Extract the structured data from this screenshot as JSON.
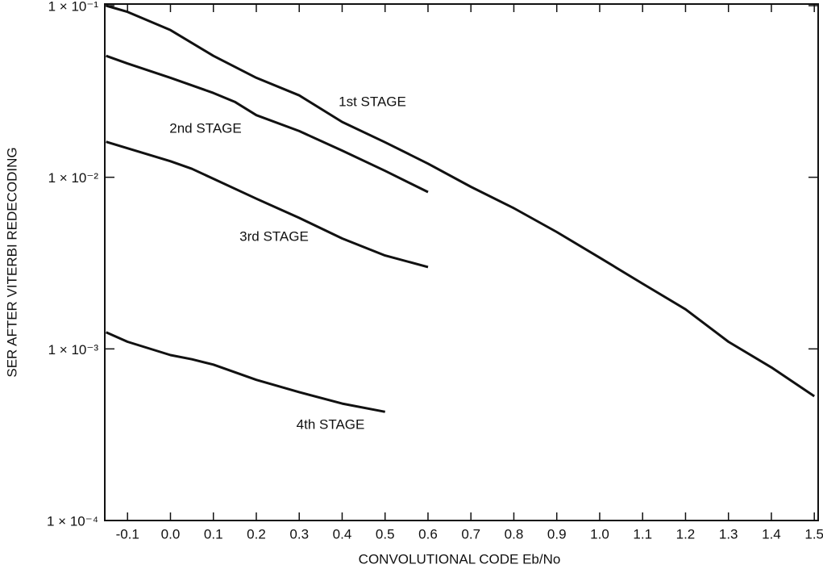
{
  "chart_data": {
    "type": "line",
    "xlabel": "CONVOLUTIONAL CODE Eb/No",
    "ylabel": "SER AFTER VITERBI REDECODING",
    "log_y": true,
    "xlim": [
      -0.153,
      1.509
    ],
    "ylim": [
      0.0001,
      0.1
    ],
    "xticks": [
      -0.1,
      {
        "value": 0,
        "label": "0.0"
      },
      0.1,
      0.2,
      0.3,
      0.4,
      0.5,
      0.6,
      0.7,
      0.8,
      0.9,
      {
        "value": 1,
        "label": "1.0"
      },
      1.1,
      1.2,
      1.3,
      1.4,
      1.5
    ],
    "yticks": [
      {
        "value": 0.1,
        "label": "1 × 10⁻¹"
      },
      {
        "value": 0.01,
        "label": "1 × 10⁻²"
      },
      {
        "value": 0.001,
        "label": "1 × 10⁻³"
      },
      {
        "value": 0.0001,
        "label": "1 × 10⁻⁴"
      }
    ],
    "series": [
      {
        "name": "1st STAGE",
        "color": "#111111",
        "x": [
          -0.15,
          -0.1,
          0,
          0.1,
          0.2,
          0.3,
          0.4,
          0.5,
          0.6,
          0.7,
          0.8,
          0.9,
          1,
          1.1,
          1.2,
          1.3,
          1.4,
          1.5
        ],
        "values": [
          0.1,
          0.092,
          0.072,
          0.051,
          0.038,
          0.03,
          0.021,
          0.016,
          0.012,
          0.0088,
          0.0066,
          0.0048,
          0.0034,
          0.0024,
          0.0017,
          0.0011,
          0.00078,
          0.00053
        ]
      },
      {
        "name": "2nd STAGE",
        "color": "#111111",
        "x": [
          -0.15,
          -0.1,
          0,
          0.1,
          0.15,
          0.2,
          0.3,
          0.4,
          0.5,
          0.6
        ],
        "values": [
          0.051,
          0.046,
          0.038,
          0.031,
          0.0275,
          0.023,
          0.0186,
          0.0143,
          0.0109,
          0.0082
        ]
      },
      {
        "name": "3rd STAGE",
        "color": "#111111",
        "x": [
          -0.15,
          0,
          0.05,
          0.1,
          0.2,
          0.3,
          0.4,
          0.5,
          0.6
        ],
        "values": [
          0.0161,
          0.0124,
          0.0112,
          0.0098,
          0.0075,
          0.0058,
          0.0044,
          0.0035,
          0.003
        ]
      },
      {
        "name": "4th STAGE",
        "color": "#111111",
        "x": [
          -0.15,
          -0.1,
          0,
          0.05,
          0.1,
          0.2,
          0.3,
          0.4,
          0.5
        ],
        "values": [
          0.00125,
          0.0011,
          0.00092,
          0.00087,
          0.00081,
          0.00066,
          0.00056,
          0.00048,
          0.00043
        ]
      }
    ]
  }
}
